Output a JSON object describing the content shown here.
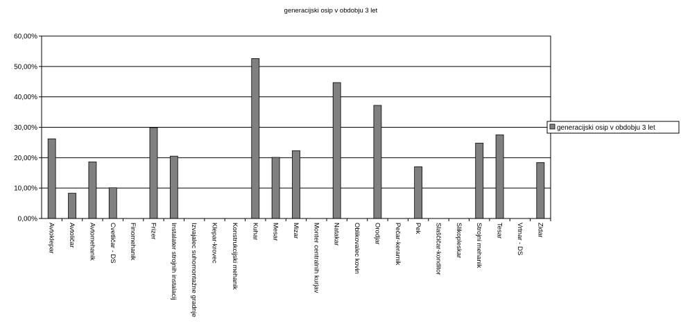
{
  "chart_data": {
    "type": "bar",
    "title": "generacijski osip v obdobju 3 let",
    "xlabel": "",
    "ylabel": "",
    "ylim": [
      0,
      0.6
    ],
    "ytick_labels": [
      "0,00%",
      "10,00%",
      "20,00%",
      "30,00%",
      "40,00%",
      "50,00%",
      "60,00%"
    ],
    "grid": true,
    "legend_position": "right",
    "categories": [
      "Avtoklepar",
      "Avtoličar",
      "Avtomehanik",
      "Cvetličar - DS",
      "Finomehanik",
      "Frizer",
      "Instalater strojnih instalacij",
      "Izvajalec suhomontažne gradnje",
      "Klepar-krovec",
      "Konstrukcijski mehanik",
      "Kuhar",
      "Mesar",
      "Mizar",
      "Monter centralnih kurjav",
      "Natakar",
      "Oblikovalec kovin",
      "Orodjar",
      "Pečar-keramik",
      "Pek",
      "Slaščičar-konditor",
      "Slikopleskar",
      "Strojni mehanik",
      "Tesar",
      "Vrtnar - DS",
      "Zidar"
    ],
    "series": [
      {
        "name": "generacijski osip v obdobju 3 let",
        "color": "#808080",
        "values": [
          0.262,
          0.083,
          0.186,
          0.101,
          0,
          0.299,
          0.205,
          0,
          0,
          0,
          0.526,
          0.201,
          0.223,
          0,
          0.447,
          0,
          0.372,
          0,
          0.17,
          0,
          0,
          0.248,
          0.275,
          0,
          0.184
        ]
      }
    ]
  }
}
